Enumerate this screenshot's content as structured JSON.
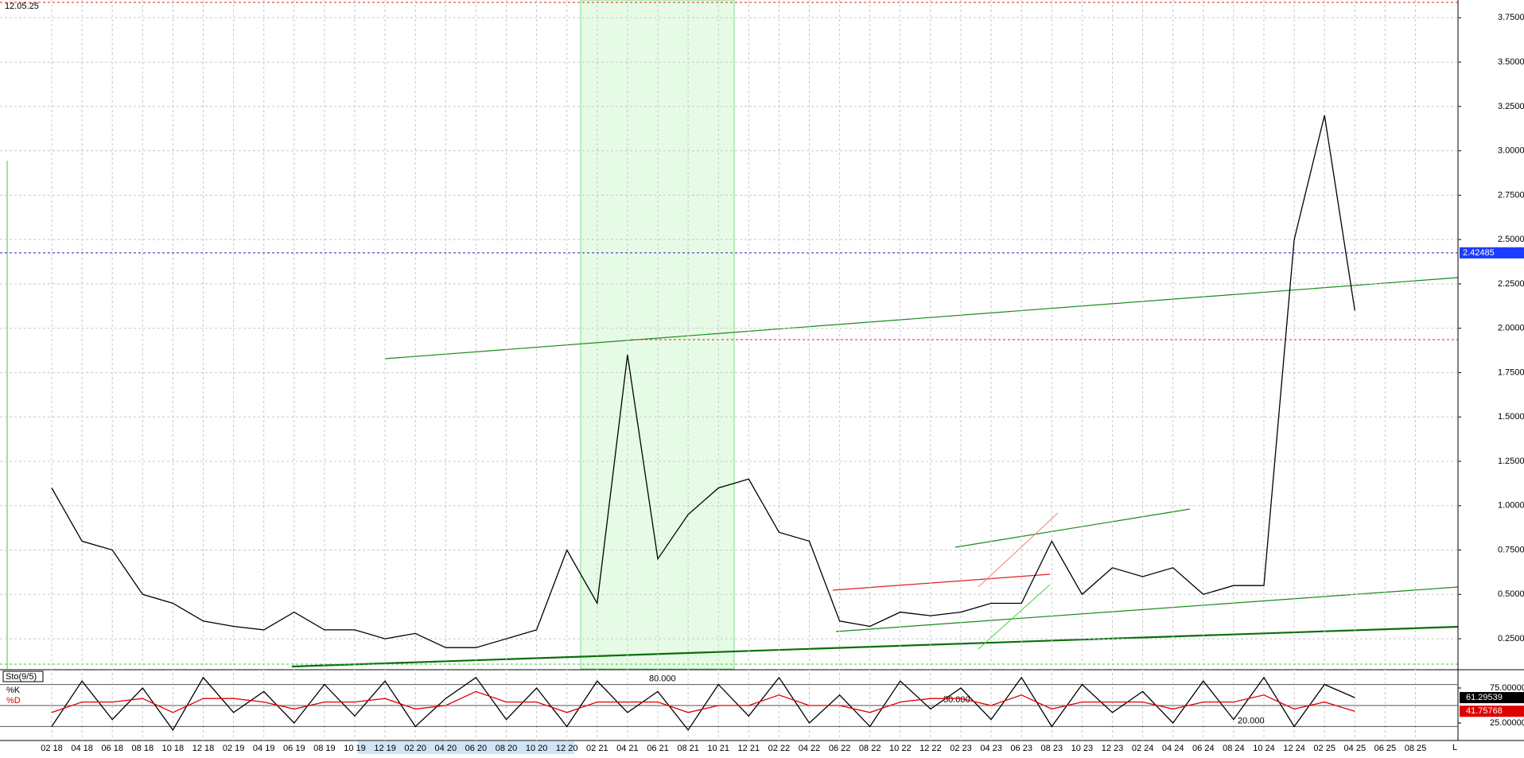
{
  "timestamp": "12.05.25",
  "corner_label": "L",
  "chart_data": [
    {
      "type": "line",
      "color": "#000000",
      "categories": [
        "02 18",
        "04 18",
        "06 18",
        "08 18",
        "10 18",
        "12 18",
        "02 19",
        "04 19",
        "06 19",
        "08 19",
        "10 19",
        "12 19",
        "02 20",
        "04 20",
        "06 20",
        "08 20",
        "10 20",
        "12 20",
        "02 21",
        "04 21",
        "06 21",
        "08 21",
        "10 21",
        "12 21",
        "02 22",
        "04 22",
        "06 22",
        "08 22",
        "10 22",
        "12 22",
        "02 23",
        "04 23",
        "06 23",
        "08 23",
        "10 23",
        "12 23",
        "02 24",
        "04 24",
        "06 24",
        "08 24",
        "10 24",
        "12 24",
        "02 25",
        "04 25",
        "06 25",
        "08 25"
      ],
      "values": [
        1.1,
        0.8,
        0.75,
        0.5,
        0.45,
        0.35,
        0.32,
        0.3,
        0.4,
        0.3,
        0.3,
        0.25,
        0.28,
        0.2,
        0.2,
        0.25,
        0.3,
        0.75,
        0.45,
        1.85,
        0.7,
        0.95,
        1.1,
        1.15,
        0.85,
        0.8,
        0.35,
        0.32,
        0.4,
        0.38,
        0.4,
        0.45,
        0.45,
        0.8,
        0.5,
        0.65,
        0.6,
        0.65,
        0.5,
        0.55,
        0.55,
        2.5,
        3.2,
        2.1,
        null,
        null
      ],
      "last_price": 2.42485,
      "ylim": [
        0.08,
        3.85
      ],
      "yticks": [
        {
          "value": 0.25,
          "label": "0.25000"
        },
        {
          "value": 0.5,
          "label": "0.50000"
        },
        {
          "value": 0.75,
          "label": "0.75000"
        },
        {
          "value": 1.0,
          "label": "1.00000"
        },
        {
          "value": 1.25,
          "label": "1.25000"
        },
        {
          "value": 1.5,
          "label": "1.50000"
        },
        {
          "value": 1.75,
          "label": "1.75000"
        },
        {
          "value": 2.0,
          "label": "2.00000"
        },
        {
          "value": 2.25,
          "label": "2.25000"
        },
        {
          "value": 2.5,
          "label": "2.50000"
        },
        {
          "value": 2.75,
          "label": "2.75000"
        },
        {
          "value": 3.0,
          "label": "3.00000"
        },
        {
          "value": 3.25,
          "label": "3.25000"
        },
        {
          "value": 3.5,
          "label": "3.50000"
        },
        {
          "value": 3.75,
          "label": "3.75000"
        }
      ],
      "grid": true
    },
    {
      "type": "line",
      "title": "Sto(9/5)",
      "series": [
        {
          "name": "%K",
          "color": "#000000",
          "values": [
            20,
            85,
            30,
            75,
            15,
            90,
            40,
            70,
            25,
            80,
            35,
            85,
            20,
            60,
            90,
            30,
            75,
            20,
            85,
            40,
            70,
            15,
            80,
            35,
            90,
            25,
            65,
            20,
            85,
            45,
            75,
            30,
            90,
            20,
            80,
            40,
            70,
            25,
            85,
            30,
            90,
            20,
            80,
            61.29539,
            null,
            null
          ],
          "last_value": 61.29539
        },
        {
          "name": "%D",
          "color": "#e00000",
          "values": [
            40,
            55,
            55,
            60,
            40,
            60,
            60,
            55,
            45,
            55,
            55,
            60,
            45,
            50,
            70,
            55,
            55,
            40,
            55,
            55,
            55,
            40,
            50,
            50,
            65,
            50,
            50,
            40,
            55,
            60,
            60,
            50,
            65,
            45,
            55,
            55,
            55,
            45,
            55,
            55,
            65,
            45,
            55,
            41.75768,
            null,
            null
          ],
          "last_value": 41.75768
        }
      ],
      "levels": [
        {
          "value": 80,
          "label": "80.000"
        },
        {
          "value": 50,
          "label": "50.000"
        },
        {
          "value": 20,
          "label": "20.000"
        }
      ],
      "ylim": [
        0,
        100
      ],
      "yticks": [
        {
          "value": 75,
          "label": "75.00000"
        },
        {
          "value": 25,
          "label": "25.00000"
        }
      ]
    }
  ]
}
